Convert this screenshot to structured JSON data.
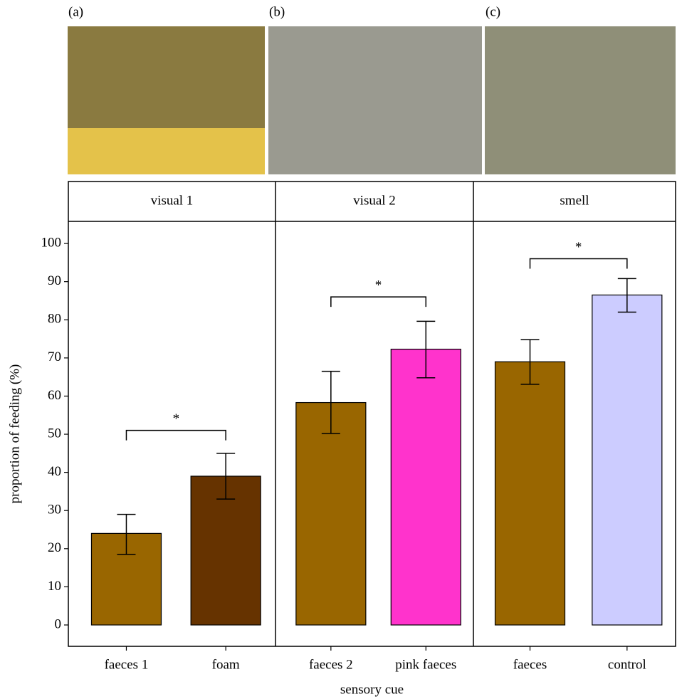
{
  "chart_data": {
    "type": "bar",
    "panel_labels": [
      "(a)",
      "(b)",
      "(c)"
    ],
    "y_label": "proportion of feeding (%)",
    "x_label": "sensory cue",
    "ylim": [
      -5.6,
      105.8
    ],
    "yticks": [
      0,
      10,
      20,
      30,
      40,
      50,
      60,
      70,
      80,
      90,
      100
    ],
    "facets": [
      {
        "name": "visual 1",
        "categories": [
          "faeces 1",
          "foam"
        ],
        "values": [
          24,
          39
        ],
        "error_low": [
          18.5,
          33
        ],
        "error_high": [
          29,
          45
        ],
        "colors": [
          "#996600",
          "#663300"
        ],
        "significance": {
          "label": "*",
          "y": 51
        }
      },
      {
        "name": "visual 2",
        "categories": [
          "faeces 2",
          "pink faeces"
        ],
        "values": [
          58.3,
          72.3
        ],
        "error_low": [
          50.2,
          64.8
        ],
        "error_high": [
          66.5,
          79.6
        ],
        "colors": [
          "#996600",
          "#ff33cc"
        ],
        "significance": {
          "label": "*",
          "y": 86
        }
      },
      {
        "name": "smell",
        "categories": [
          "faeces",
          "control"
        ],
        "values": [
          69,
          86.5
        ],
        "error_low": [
          63.1,
          82
        ],
        "error_high": [
          74.8,
          90.8
        ],
        "colors": [
          "#996600",
          "#ccccff"
        ],
        "significance": {
          "label": "*",
          "y": 96
        }
      }
    ]
  }
}
